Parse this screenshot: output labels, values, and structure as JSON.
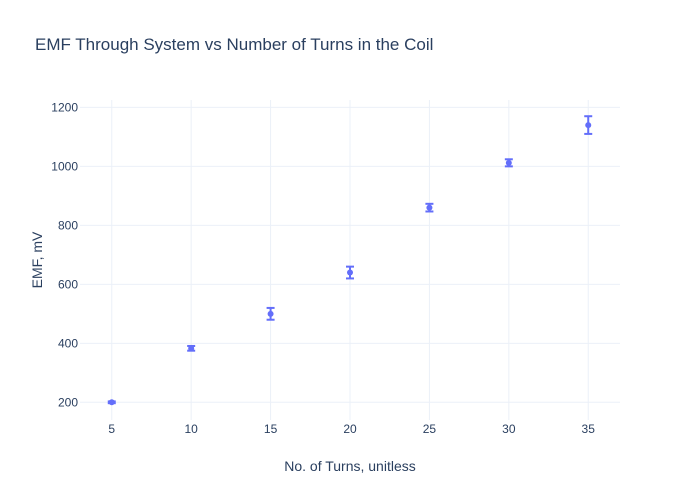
{
  "chart_data": {
    "type": "scatter",
    "title": "EMF Through System vs Number of Turns in the Coil",
    "xlabel": "No. of Turns, unitless",
    "ylabel": "EMF, mV",
    "x": [
      5,
      10,
      15,
      20,
      25,
      30,
      35
    ],
    "y": [
      200,
      383,
      500,
      640,
      860,
      1012,
      1140
    ],
    "error_y": [
      3,
      8,
      20,
      20,
      13,
      12,
      30
    ],
    "xlim": [
      3,
      37
    ],
    "ylim": [
      140,
      1225
    ],
    "x_ticks": [
      "5",
      "10",
      "15",
      "20",
      "25",
      "30",
      "35"
    ],
    "y_ticks": [
      "200",
      "400",
      "600",
      "800",
      "1000",
      "1200"
    ],
    "grid": true,
    "marker_color": "#636efa"
  }
}
